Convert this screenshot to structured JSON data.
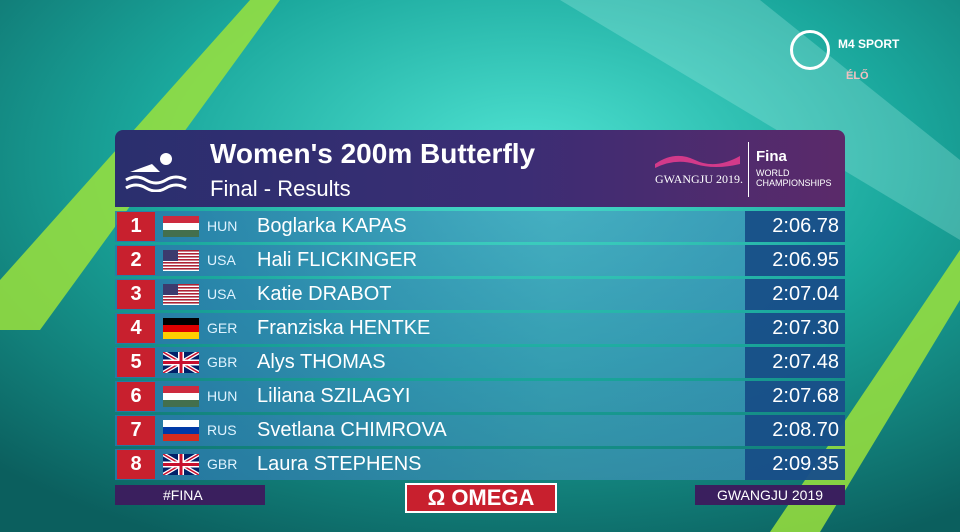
{
  "header": {
    "title": "Women's 200m Butterfly",
    "subtitle": "Final - Results",
    "event_logo": "GWANGJU 2019.",
    "fina": "Fina",
    "championships": "WORLD CHAMPIONSHIPS"
  },
  "broadcaster": {
    "name": "M4 SPORT",
    "live": "ÉLŐ"
  },
  "table": {
    "rows": [
      {
        "rank": 1,
        "country": "HUN",
        "name": "Boglarka KAPAS",
        "time": "2:06.78"
      },
      {
        "rank": 2,
        "country": "USA",
        "name": "Hali FLICKINGER",
        "time": "2:06.95"
      },
      {
        "rank": 3,
        "country": "USA",
        "name": "Katie DRABOT",
        "time": "2:07.04"
      },
      {
        "rank": 4,
        "country": "GER",
        "name": "Franziska HENTKE",
        "time": "2:07.30"
      },
      {
        "rank": 5,
        "country": "GBR",
        "name": "Alys THOMAS",
        "time": "2:07.48"
      },
      {
        "rank": 6,
        "country": "HUN",
        "name": "Liliana SZILAGYI",
        "time": "2:07.68"
      },
      {
        "rank": 7,
        "country": "RUS",
        "name": "Svetlana CHIMROVA",
        "time": "2:08.70"
      },
      {
        "rank": 8,
        "country": "GBR",
        "name": "Laura STEPHENS",
        "time": "2:09.35"
      }
    ]
  },
  "footer": {
    "hashtag": "#FINA",
    "sponsor": "Ω OMEGA",
    "location": "GWANGJU 2019"
  }
}
